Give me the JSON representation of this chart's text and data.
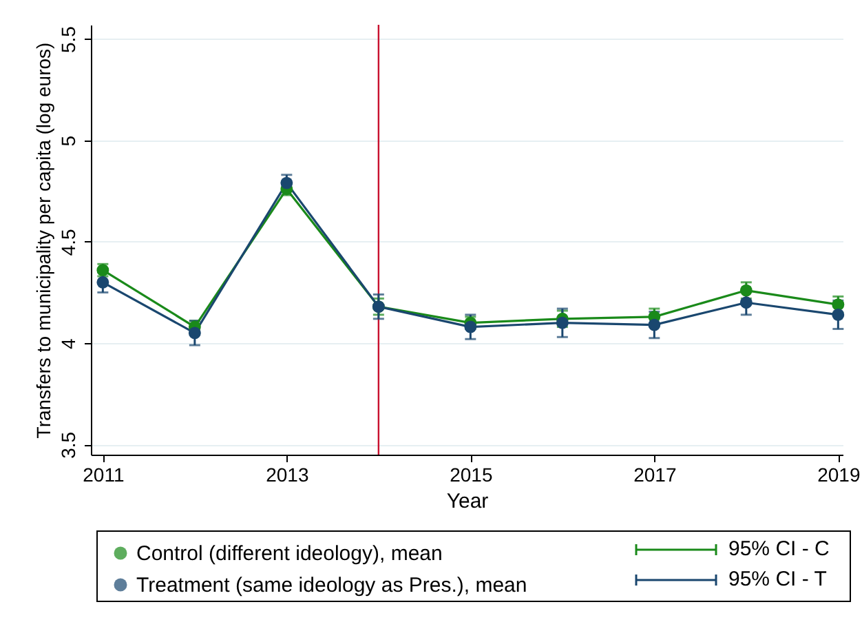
{
  "chart_data": {
    "type": "line",
    "xlabel": "Year",
    "ylabel": "Transfers to municipality per capita (log euros)",
    "x": [
      2011,
      2012,
      2013,
      2014,
      2015,
      2016,
      2017,
      2018,
      2019
    ],
    "series": [
      {
        "name": "Control (different ideology), mean",
        "color": "#1a8a1a",
        "values": [
          4.36,
          4.08,
          4.76,
          4.18,
          4.1,
          4.12,
          4.13,
          4.26,
          4.19
        ],
        "errors": [
          0.03,
          0.03,
          0.03,
          0.04,
          0.03,
          0.04,
          0.04,
          0.04,
          0.04
        ]
      },
      {
        "name": "Treatment (same ideology as Pres.), mean",
        "color": "#1a476f",
        "values": [
          4.3,
          4.05,
          4.79,
          4.18,
          4.08,
          4.1,
          4.09,
          4.2,
          4.14
        ],
        "errors": [
          0.05,
          0.06,
          0.04,
          0.06,
          0.06,
          0.07,
          0.065,
          0.06,
          0.07
        ]
      }
    ],
    "xlim": [
      2010.87,
      2019.05
    ],
    "xticks": [
      2011,
      2013,
      2015,
      2017,
      2019
    ],
    "ylim": [
      3.45,
      5.57
    ],
    "yticks": [
      3.5,
      4,
      4.5,
      5,
      5.5
    ],
    "ref_lines": [
      {
        "axis": "x",
        "value": 2014,
        "color": "#c8102e"
      }
    ],
    "annotations": [
      "95% CI - C",
      "95% CI - T"
    ],
    "grid": "y",
    "legend": "bottom",
    "marker": "circle",
    "line_style": "solid"
  }
}
